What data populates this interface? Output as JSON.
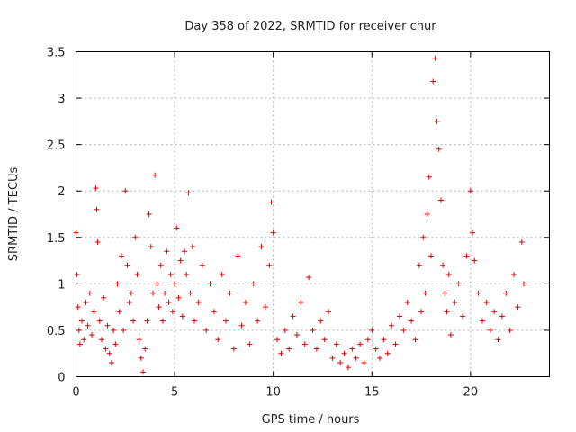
{
  "chart_data": {
    "type": "scatter",
    "title": "Day 358 of 2022, SRMTID for receiver chur",
    "xlabel": "GPS time / hours",
    "ylabel": "SRMTID / TECUs",
    "xlim": [
      0,
      24
    ],
    "ylim": [
      0,
      3.5
    ],
    "xticks": [
      0,
      5,
      10,
      15,
      20
    ],
    "xtick_labels": [
      "0",
      "5",
      "10",
      "15",
      "20"
    ],
    "yticks": [
      0,
      0.5,
      1,
      1.5,
      2,
      2.5,
      3,
      3.5
    ],
    "ytick_labels": [
      "0",
      "0.5",
      "1",
      "1.5",
      "2",
      "2.5",
      "3",
      "3.5"
    ],
    "grid": true,
    "marker": "+",
    "color": "#e00000",
    "series": [
      {
        "name": "SRMTID",
        "x": [
          0.0,
          0.05,
          0.1,
          0.15,
          0.2,
          0.3,
          0.4,
          0.5,
          0.6,
          0.7,
          0.8,
          0.9,
          1.0,
          1.05,
          1.1,
          1.2,
          1.3,
          1.4,
          1.5,
          1.6,
          1.7,
          1.8,
          1.9,
          2.0,
          2.1,
          2.2,
          2.3,
          2.4,
          2.5,
          2.6,
          2.7,
          2.8,
          2.9,
          3.0,
          3.1,
          3.2,
          3.3,
          3.4,
          3.5,
          3.6,
          3.7,
          3.8,
          3.9,
          4.0,
          4.1,
          4.2,
          4.3,
          4.4,
          4.5,
          4.6,
          4.7,
          4.8,
          4.9,
          5.0,
          5.1,
          5.2,
          5.3,
          5.4,
          5.5,
          5.6,
          5.7,
          5.8,
          5.9,
          6.0,
          6.2,
          6.4,
          6.6,
          6.8,
          7.0,
          7.2,
          7.4,
          7.6,
          7.8,
          8.0,
          8.2,
          8.4,
          8.6,
          8.8,
          9.0,
          9.2,
          9.4,
          9.6,
          9.8,
          9.9,
          10.0,
          10.2,
          10.4,
          10.6,
          10.8,
          11.0,
          11.2,
          11.4,
          11.6,
          11.8,
          12.0,
          12.2,
          12.4,
          12.6,
          12.8,
          13.0,
          13.2,
          13.4,
          13.6,
          13.8,
          14.0,
          14.2,
          14.4,
          14.6,
          14.8,
          15.0,
          15.2,
          15.4,
          15.6,
          15.8,
          16.0,
          16.2,
          16.4,
          16.6,
          16.8,
          17.0,
          17.2,
          17.4,
          17.5,
          17.6,
          17.7,
          17.8,
          17.9,
          18.0,
          18.1,
          18.2,
          18.3,
          18.4,
          18.5,
          18.6,
          18.7,
          18.8,
          18.9,
          19.0,
          19.2,
          19.4,
          19.6,
          19.8,
          20.0,
          20.1,
          20.2,
          20.4,
          20.6,
          20.8,
          21.0,
          21.2,
          21.4,
          21.6,
          21.8,
          22.0,
          22.2,
          22.4,
          22.6,
          22.7
        ],
        "y": [
          1.55,
          1.1,
          0.75,
          0.5,
          0.35,
          0.6,
          0.4,
          0.8,
          0.55,
          0.9,
          0.45,
          0.7,
          2.03,
          1.8,
          1.45,
          0.6,
          0.4,
          0.85,
          0.3,
          0.55,
          0.25,
          0.15,
          0.5,
          0.35,
          1.0,
          0.7,
          1.3,
          0.5,
          2.0,
          1.2,
          0.8,
          0.9,
          0.6,
          1.5,
          1.1,
          0.4,
          0.2,
          0.05,
          0.3,
          0.6,
          1.75,
          1.4,
          0.9,
          2.17,
          1.0,
          0.75,
          1.2,
          0.6,
          0.9,
          1.35,
          0.8,
          1.1,
          0.7,
          1.0,
          1.6,
          0.85,
          1.25,
          0.65,
          1.35,
          1.1,
          1.98,
          0.9,
          1.4,
          0.6,
          0.8,
          1.2,
          0.5,
          1.0,
          0.7,
          0.4,
          1.1,
          0.6,
          0.9,
          0.3,
          1.3,
          0.55,
          0.8,
          0.35,
          1.0,
          0.6,
          1.4,
          0.75,
          1.2,
          1.88,
          1.55,
          0.4,
          0.25,
          0.5,
          0.3,
          0.65,
          0.45,
          0.8,
          0.35,
          1.07,
          0.5,
          0.3,
          0.6,
          0.4,
          0.7,
          0.2,
          0.35,
          0.15,
          0.25,
          0.1,
          0.3,
          0.2,
          0.35,
          0.15,
          0.4,
          0.5,
          0.3,
          0.2,
          0.4,
          0.25,
          0.55,
          0.35,
          0.65,
          0.5,
          0.8,
          0.6,
          0.4,
          1.2,
          0.7,
          1.5,
          0.9,
          1.75,
          2.15,
          1.3,
          3.18,
          3.43,
          2.75,
          2.45,
          1.9,
          1.2,
          0.9,
          0.7,
          1.1,
          0.45,
          0.8,
          1.0,
          0.65,
          1.3,
          2.0,
          1.55,
          1.25,
          0.9,
          0.6,
          0.8,
          0.5,
          0.7,
          0.4,
          0.65,
          0.9,
          0.5,
          1.1,
          0.75,
          1.45,
          1.0
        ]
      }
    ]
  }
}
